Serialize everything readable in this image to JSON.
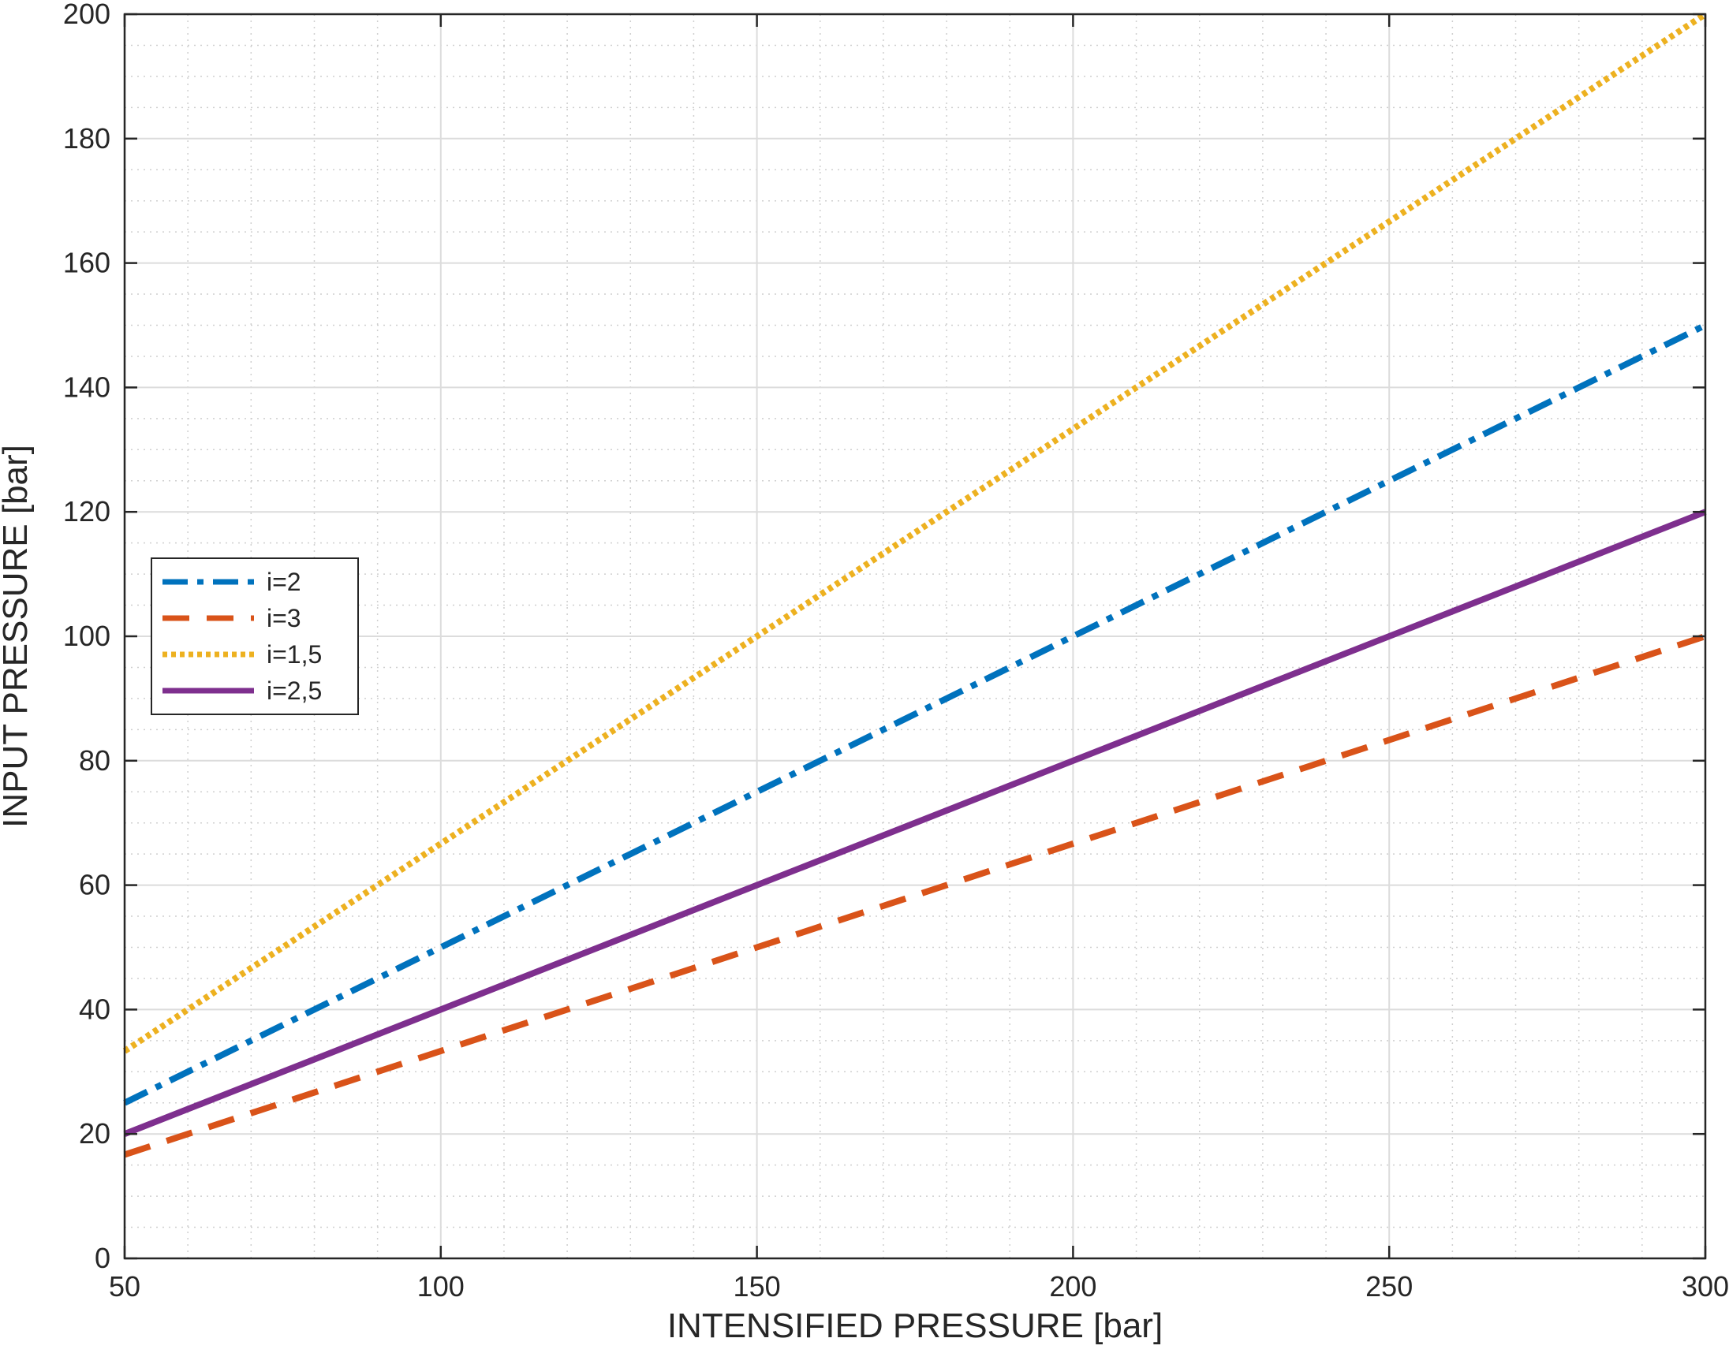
{
  "chart_data": {
    "type": "line",
    "title": "",
    "xlabel": "INTENSIFIED PRESSURE [bar]",
    "ylabel": "INPUT PRESSURE [bar]",
    "xlim": [
      50,
      300
    ],
    "ylim": [
      0,
      200
    ],
    "xticks": [
      50,
      100,
      150,
      200,
      250,
      300
    ],
    "yticks": [
      0,
      20,
      40,
      60,
      80,
      100,
      120,
      140,
      160,
      180,
      200
    ],
    "x_tick_labels": [
      "50",
      "100",
      "150",
      "200",
      "250",
      "300"
    ],
    "y_tick_labels": [
      "0",
      "20",
      "40",
      "60",
      "80",
      "100",
      "120",
      "140",
      "160",
      "180",
      "200"
    ],
    "grid": "major and minor",
    "legend_position": "middle-left",
    "series": [
      {
        "name": "i=2",
        "color": "#0072BD",
        "style": "dashdot",
        "x": [
          50,
          300
        ],
        "y": [
          25,
          150
        ]
      },
      {
        "name": "i=3",
        "color": "#D95319",
        "style": "dashed",
        "x": [
          50,
          300
        ],
        "y": [
          16.67,
          100
        ]
      },
      {
        "name": "i=1,5",
        "color": "#EDB120",
        "style": "dotted",
        "x": [
          50,
          300
        ],
        "y": [
          33.33,
          200
        ]
      },
      {
        "name": "i=2,5",
        "color": "#7E2F8E",
        "style": "solid",
        "x": [
          50,
          300
        ],
        "y": [
          20,
          120
        ]
      }
    ]
  }
}
